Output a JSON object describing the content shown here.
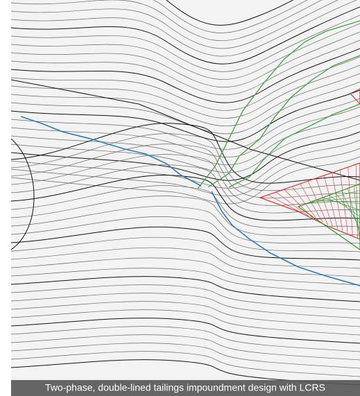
{
  "caption": "Two-phase, double-lined tailings impoundment design with LCRS"
}
